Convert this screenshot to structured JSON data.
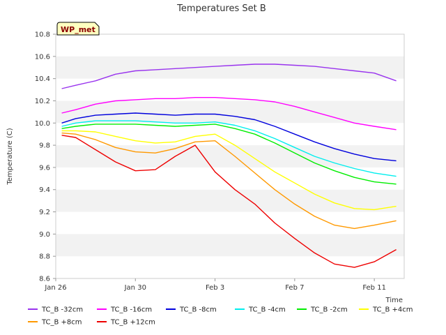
{
  "chart_data": {
    "type": "line",
    "title": "Temperatures Set B",
    "xlabel": "Time",
    "ylabel": "Temperature (C)",
    "badge": "WP_met",
    "xlim": [
      0,
      17.5
    ],
    "ylim": [
      8.6,
      10.8
    ],
    "x_ticks": [
      {
        "x": 0,
        "label": "Jan 26"
      },
      {
        "x": 4,
        "label": "Jan 30"
      },
      {
        "x": 8,
        "label": "Feb 3"
      },
      {
        "x": 12,
        "label": "Feb 7"
      },
      {
        "x": 16,
        "label": "Feb 11"
      }
    ],
    "y_ticks": [
      {
        "y": 8.6,
        "label": "8.6"
      },
      {
        "y": 8.8,
        "label": "8.8"
      },
      {
        "y": 9.0,
        "label": "9.0"
      },
      {
        "y": 9.2,
        "label": "9.2"
      },
      {
        "y": 9.4,
        "label": "9.4"
      },
      {
        "y": 9.6,
        "label": "9.6"
      },
      {
        "y": 9.8,
        "label": "9.8"
      },
      {
        "y": 10.0,
        "label": "10.0"
      },
      {
        "y": 10.2,
        "label": "10.2"
      },
      {
        "y": 10.4,
        "label": "10.4"
      },
      {
        "y": 10.6,
        "label": "10.6"
      },
      {
        "y": 10.8,
        "label": "10.8"
      }
    ],
    "grid": "horizontal bands",
    "legend_position": "bottom",
    "x": [
      0.3,
      1,
      2,
      3,
      4,
      5,
      6,
      7,
      8,
      9,
      10,
      11,
      12,
      13,
      14,
      15,
      16,
      17.1
    ],
    "series": [
      {
        "name": "TC_B -32cm",
        "color": "#9933ee",
        "values": [
          10.31,
          10.34,
          10.38,
          10.44,
          10.47,
          10.48,
          10.49,
          10.5,
          10.51,
          10.52,
          10.53,
          10.53,
          10.52,
          10.51,
          10.49,
          10.47,
          10.45,
          10.38
        ]
      },
      {
        "name": "TC_B -16cm",
        "color": "#ff00ff",
        "values": [
          10.09,
          10.12,
          10.17,
          10.2,
          10.21,
          10.22,
          10.22,
          10.23,
          10.23,
          10.22,
          10.21,
          10.19,
          10.15,
          10.1,
          10.05,
          10.0,
          9.97,
          9.94
        ]
      },
      {
        "name": "TC_B -8cm",
        "color": "#0000dd",
        "values": [
          10.0,
          10.04,
          10.07,
          10.08,
          10.09,
          10.08,
          10.07,
          10.08,
          10.08,
          10.06,
          10.03,
          9.97,
          9.9,
          9.83,
          9.77,
          9.72,
          9.68,
          9.66
        ]
      },
      {
        "name": "TC_B -4cm",
        "color": "#00eeee",
        "values": [
          9.97,
          10.0,
          10.02,
          10.02,
          10.02,
          10.01,
          10.0,
          10.0,
          10.01,
          9.98,
          9.93,
          9.86,
          9.78,
          9.7,
          9.64,
          9.59,
          9.55,
          9.52
        ]
      },
      {
        "name": "TC_B -2cm",
        "color": "#00ee00",
        "values": [
          9.95,
          9.97,
          9.99,
          9.99,
          9.99,
          9.98,
          9.97,
          9.98,
          9.99,
          9.95,
          9.9,
          9.82,
          9.73,
          9.64,
          9.57,
          9.51,
          9.47,
          9.45
        ]
      },
      {
        "name": "TC_B +4cm",
        "color": "#ffff00",
        "values": [
          9.93,
          9.93,
          9.92,
          9.88,
          9.84,
          9.82,
          9.83,
          9.88,
          9.9,
          9.8,
          9.68,
          9.56,
          9.46,
          9.36,
          9.28,
          9.23,
          9.22,
          9.25
        ]
      },
      {
        "name": "TC_B +8cm",
        "color": "#ff9900",
        "values": [
          9.91,
          9.9,
          9.85,
          9.78,
          9.74,
          9.73,
          9.77,
          9.83,
          9.84,
          9.7,
          9.55,
          9.4,
          9.27,
          9.16,
          9.08,
          9.05,
          9.08,
          9.12
        ]
      },
      {
        "name": "TC_B +12cm",
        "color": "#ee0000",
        "values": [
          9.89,
          9.87,
          9.76,
          9.65,
          9.57,
          9.58,
          9.7,
          9.8,
          9.56,
          9.4,
          9.27,
          9.1,
          8.96,
          8.83,
          8.73,
          8.7,
          8.75,
          8.86
        ]
      }
    ]
  }
}
